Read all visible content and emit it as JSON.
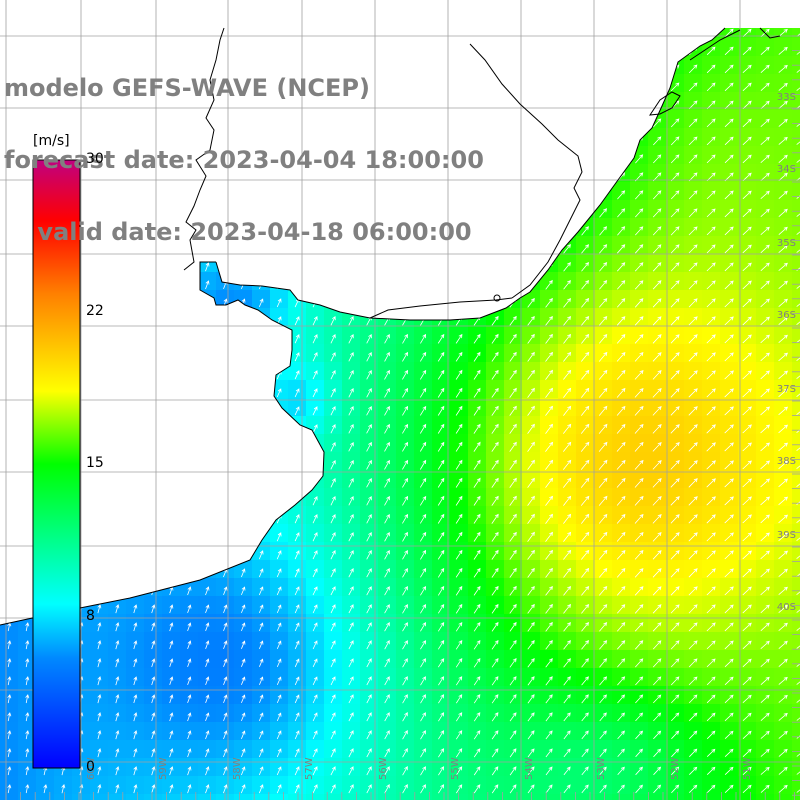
{
  "header": {
    "model": "modelo GEFS-WAVE (NCEP)",
    "forecast": "forecast date: 2023-04-04 18:00:00",
    "valid": "    valid date: 2023-04-18 06:00:00"
  },
  "colorbar": {
    "unit": "[m/s]",
    "labels": [
      "30",
      "22",
      "15",
      "8",
      "0"
    ],
    "range": [
      0,
      30
    ],
    "colors": [
      "#0000ff",
      "#00ffff",
      "#00ff00",
      "#ffff00",
      "#ff0000",
      "#c00080"
    ]
  },
  "map": {
    "lat_labels": [
      "33S",
      "34S",
      "35S",
      "36S",
      "37S",
      "38S",
      "39S",
      "40S"
    ],
    "lon_labels": [
      "60W",
      "59W",
      "58W",
      "57W",
      "56W",
      "55W",
      "54W",
      "53W",
      "52W",
      "51W"
    ],
    "land_color": "#ffffff",
    "grid_color": "#a0a0a0",
    "coast_color": "#000000",
    "vector_color": "#ffffff",
    "field": "wind speed and direction",
    "projection": "lat-lon"
  }
}
